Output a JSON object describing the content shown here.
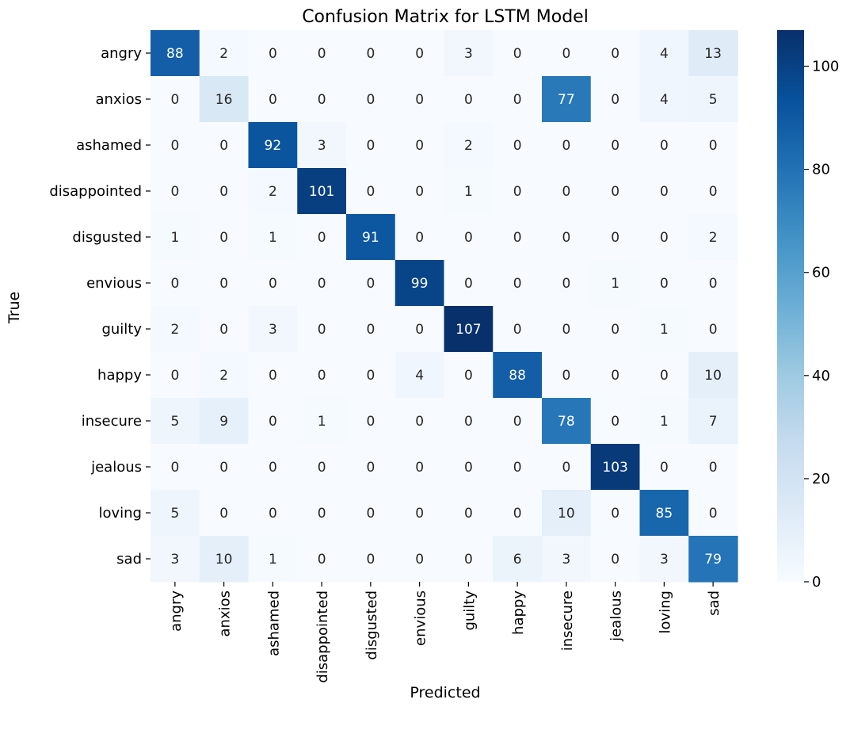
{
  "chart_data": {
    "type": "heatmap",
    "title": "Confusion Matrix for LSTM Model",
    "xlabel": "Predicted",
    "ylabel": "True",
    "x_categories": [
      "angry",
      "anxios",
      "ashamed",
      "disappointed",
      "disgusted",
      "envious",
      "guilty",
      "happy",
      "insecure",
      "jealous",
      "loving",
      "sad"
    ],
    "y_categories": [
      "angry",
      "anxios",
      "ashamed",
      "disappointed",
      "disgusted",
      "envious",
      "guilty",
      "happy",
      "insecure",
      "jealous",
      "loving",
      "sad"
    ],
    "values": [
      [
        88,
        2,
        0,
        0,
        0,
        0,
        3,
        0,
        0,
        0,
        4,
        13
      ],
      [
        0,
        16,
        0,
        0,
        0,
        0,
        0,
        0,
        77,
        0,
        4,
        5
      ],
      [
        0,
        0,
        92,
        3,
        0,
        0,
        2,
        0,
        0,
        0,
        0,
        0
      ],
      [
        0,
        0,
        2,
        101,
        0,
        0,
        1,
        0,
        0,
        0,
        0,
        0
      ],
      [
        1,
        0,
        1,
        0,
        91,
        0,
        0,
        0,
        0,
        0,
        0,
        2
      ],
      [
        0,
        0,
        0,
        0,
        0,
        99,
        0,
        0,
        0,
        1,
        0,
        0
      ],
      [
        2,
        0,
        3,
        0,
        0,
        0,
        107,
        0,
        0,
        0,
        1,
        0
      ],
      [
        0,
        2,
        0,
        0,
        0,
        4,
        0,
        88,
        0,
        0,
        0,
        10
      ],
      [
        5,
        9,
        0,
        1,
        0,
        0,
        0,
        0,
        78,
        0,
        1,
        7
      ],
      [
        0,
        0,
        0,
        0,
        0,
        0,
        0,
        0,
        0,
        103,
        0,
        0
      ],
      [
        5,
        0,
        0,
        0,
        0,
        0,
        0,
        0,
        10,
        0,
        85,
        0
      ],
      [
        3,
        10,
        1,
        0,
        0,
        0,
        0,
        6,
        3,
        0,
        3,
        79
      ]
    ],
    "colormap": "Blues",
    "colormap_range": [
      0,
      107
    ],
    "colorbar_ticks": [
      0,
      20,
      40,
      60,
      80,
      100
    ]
  }
}
